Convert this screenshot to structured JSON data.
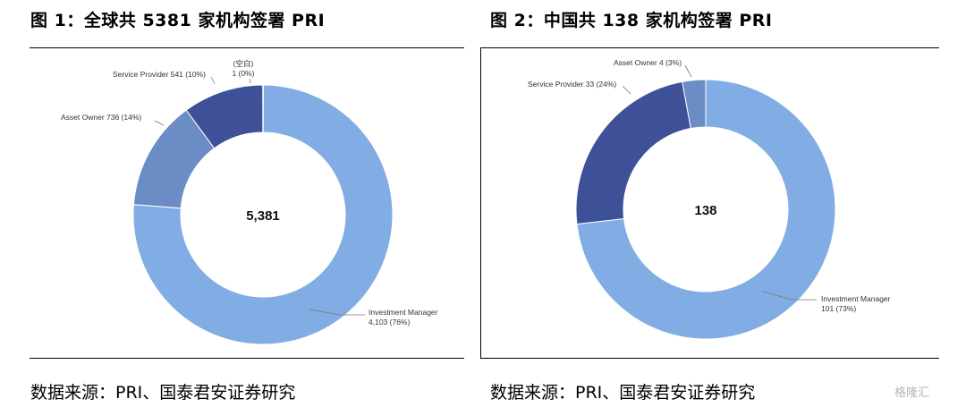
{
  "figures": [
    {
      "title": "图 1：全球共 5381 家机构签署 PRI",
      "source": "数据来源：PRI、国泰君安证券研究"
    },
    {
      "title": "图 2：中国共 138 家机构签署 PRI",
      "source": "数据来源：PRI、国泰君安证券研究"
    }
  ],
  "watermark": "格隆汇",
  "chart_data": [
    {
      "type": "pie",
      "center_label": "5,381",
      "series": [
        {
          "name": "Investment Manager",
          "value": 4103,
          "percent": "76%",
          "label": "4,103 (76%)",
          "color": "#82ade4"
        },
        {
          "name": "Asset Owner",
          "value": 736,
          "percent": "14%",
          "label": "Asset Owner 736 (14%)",
          "color": "#6b8cc4"
        },
        {
          "name": "Service Provider",
          "value": 541,
          "percent": "10%",
          "label": "Service Provider 541 (10%)",
          "color": "#3e5198"
        },
        {
          "name": "(空白)",
          "value": 1,
          "percent": "0%",
          "label": "1 (0%)",
          "color": "#2e3f86"
        }
      ]
    },
    {
      "type": "pie",
      "center_label": "138",
      "series": [
        {
          "name": "Investment Manager",
          "value": 101,
          "percent": "73%",
          "label": "101 (73%)",
          "color": "#82ade4"
        },
        {
          "name": "Service Provider",
          "value": 33,
          "percent": "24%",
          "label": "Service Provider 33 (24%)",
          "color": "#3e5198"
        },
        {
          "name": "Asset Owner",
          "value": 4,
          "percent": "3%",
          "label": "Asset Owner 4 (3%)",
          "color": "#6b8cc4"
        }
      ]
    }
  ]
}
